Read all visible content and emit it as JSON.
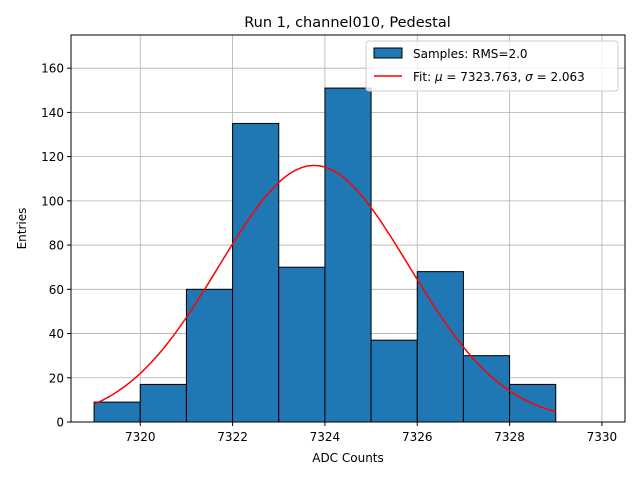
{
  "chart_data": {
    "type": "bar",
    "title": "Run 1, channel010, Pedestal",
    "xlabel": "ADC Counts",
    "ylabel": "Entries",
    "xlim": [
      7318.5,
      7330.5
    ],
    "ylim": [
      0,
      175
    ],
    "xticks": [
      7320,
      7322,
      7324,
      7326,
      7328,
      7330
    ],
    "yticks": [
      0,
      20,
      40,
      60,
      80,
      100,
      120,
      140,
      160
    ],
    "grid": true,
    "legend_position": "top-right",
    "histogram": {
      "name": "Samples: RMS=2.0",
      "color": "#1f77b4",
      "bin_edges": [
        7319,
        7320,
        7321,
        7322,
        7323,
        7324,
        7325,
        7326,
        7327,
        7328,
        7329
      ],
      "counts": [
        9,
        17,
        60,
        135,
        70,
        151,
        37,
        68,
        30,
        17
      ]
    },
    "fit": {
      "name": "Fit: μ = 7323.763, σ = 2.063",
      "label_parts": [
        "Fit: ",
        "μ",
        " = 7323.763, ",
        "σ",
        " = 2.063"
      ],
      "color": "#ff0000",
      "mu": 7323.763,
      "sigma": 2.063,
      "amplitude": 116,
      "x_range": [
        7319,
        7329
      ]
    }
  }
}
